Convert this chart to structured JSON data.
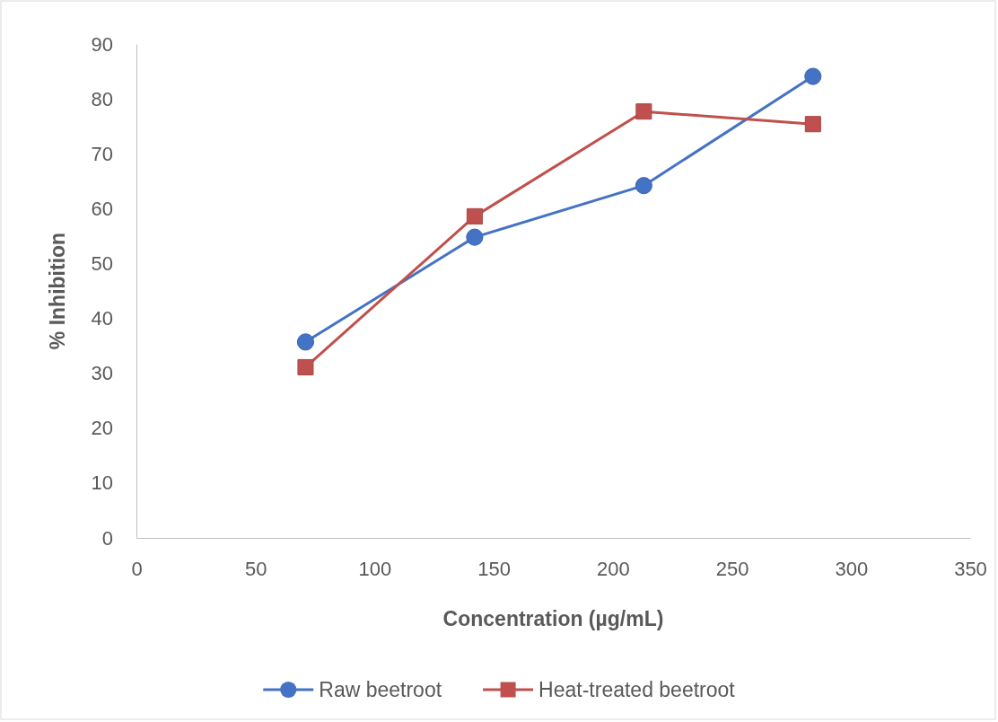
{
  "chart_data": {
    "type": "line",
    "xlabel": "Concentration (µg/mL)",
    "ylabel": "% Inhibition",
    "xlim": [
      0,
      350
    ],
    "xticks": [
      0,
      50,
      100,
      150,
      200,
      250,
      300,
      350
    ],
    "ylim": [
      0,
      90
    ],
    "yticks": [
      0,
      10,
      20,
      30,
      40,
      50,
      60,
      70,
      80,
      90
    ],
    "grid": false,
    "legend": "bottom",
    "series": [
      {
        "name": "Raw beetroot",
        "color": "#4472c4",
        "marker": "circle",
        "x": [
          71,
          142,
          213,
          284
        ],
        "values": [
          35.7,
          54.8,
          64.2,
          84.1
        ]
      },
      {
        "name": "Heat-treated beetroot",
        "color": "#c0504d",
        "marker": "square",
        "x": [
          71,
          142,
          213,
          284
        ],
        "values": [
          31.1,
          58.6,
          77.7,
          75.4
        ]
      }
    ]
  }
}
